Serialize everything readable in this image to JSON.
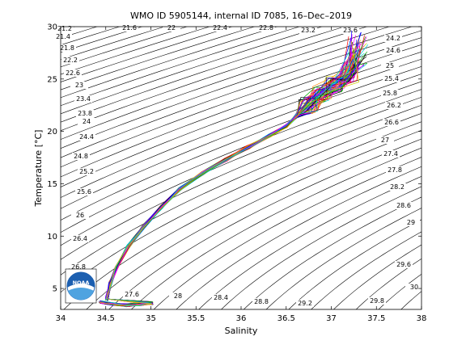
{
  "chart_data": {
    "type": "line",
    "title": "WMO ID 5905144, internal ID 7085, 16–Dec–2019",
    "xlabel": "Salinity",
    "ylabel": "Temperature [°C]",
    "xlim": [
      34,
      38
    ],
    "ylim": [
      3,
      30
    ],
    "x_ticks": [
      "34",
      "34.5",
      "35",
      "35.5",
      "36",
      "36.5",
      "37",
      "37.5",
      "38"
    ],
    "y_ticks": [
      "5",
      "10",
      "15",
      "20",
      "25",
      "30"
    ],
    "isopycnal_labels": [
      "21.6",
      "22",
      "22.4",
      "22.8",
      "23.2",
      "23.6",
      "24.2",
      "24.6",
      "25",
      "25.4",
      "25.8",
      "26.2",
      "26.6",
      "27",
      "27.4",
      "27.8",
      "28.2",
      "28.6",
      "29",
      "29.6",
      "30",
      "29.8",
      "29.2",
      "28.8",
      "28.4",
      "28",
      "27.6",
      "26.8",
      "26.4",
      "26",
      "25.6",
      "25.2",
      "24.8",
      "24.4",
      "24",
      "23.8",
      "23.4",
      "23",
      "22.6",
      "22.2",
      "21.8",
      "21.4",
      "21.2"
    ],
    "profile_envelope": {
      "salinity": [
        34.51,
        34.55,
        34.62,
        34.75,
        34.93,
        35.12,
        35.32,
        35.57,
        35.83,
        36.08,
        36.32,
        36.5,
        36.62,
        36.75,
        36.9,
        37.05,
        37.2,
        37.3
      ],
      "temperature": [
        4.0,
        5.5,
        7.0,
        9.0,
        11.0,
        12.8,
        14.5,
        16.0,
        17.3,
        18.5,
        19.6,
        20.5,
        21.5,
        22.5,
        23.5,
        24.5,
        25.5,
        26.5
      ]
    },
    "bottom_cluster": {
      "salinity": [
        34.45,
        34.6,
        34.75,
        34.9,
        35.0
      ],
      "temperature": [
        3.7,
        3.5,
        3.4,
        3.5,
        3.6
      ]
    },
    "series_count": 60,
    "grid": false
  },
  "logo": {
    "text": "NOAA",
    "colors": {
      "blue": "#1c5fb0",
      "light": "#4fa3e0",
      "white": "#ffffff"
    }
  },
  "colors": {
    "isopycnal": "#000000",
    "axis": "#000000",
    "profiles": [
      "#ff0000",
      "#00aa00",
      "#0000ff",
      "#ff00ff",
      "#00cccc",
      "#cccc00",
      "#000000",
      "#ff8800",
      "#8800ff"
    ]
  }
}
